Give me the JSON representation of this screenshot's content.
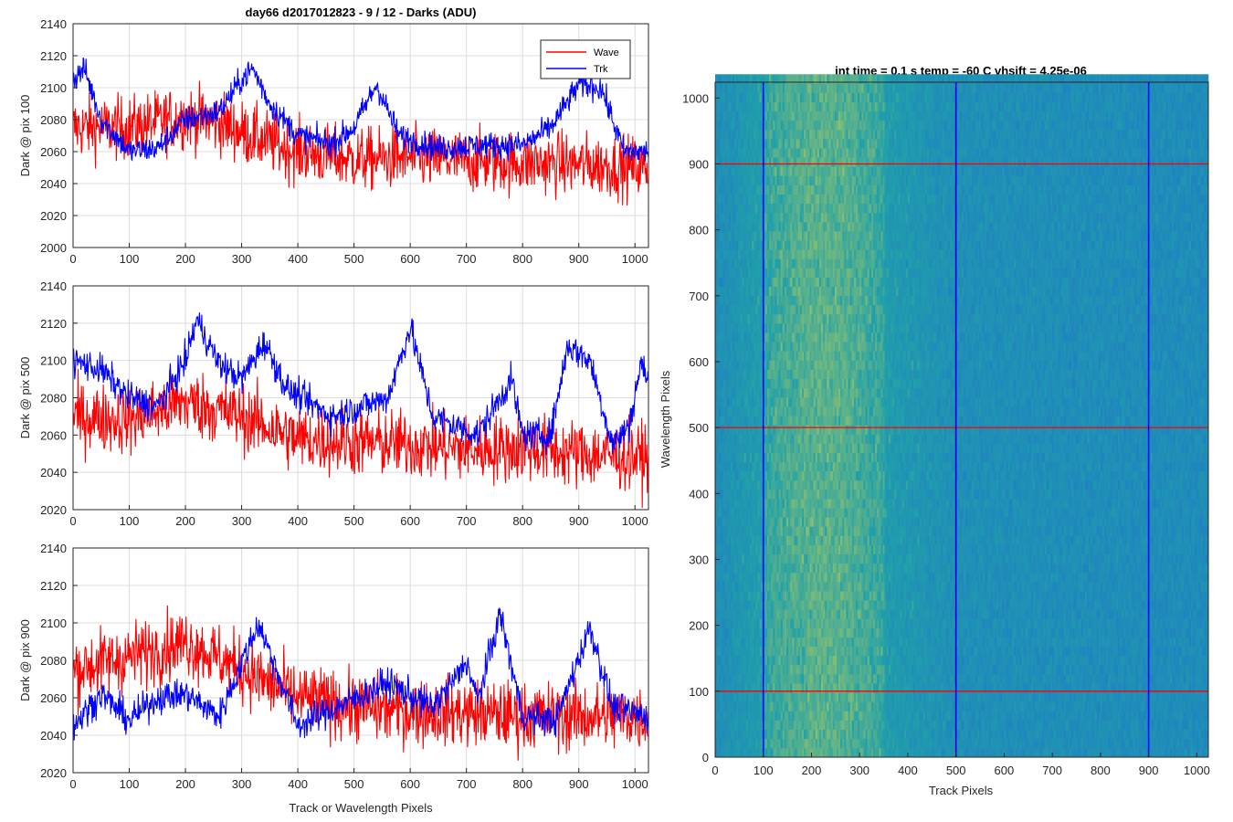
{
  "figure_title": "day66 d2017012823 - 9 / 12 - Darks (ADU)",
  "colors": {
    "wave": "#ff0000",
    "trk": "#0000ff",
    "grid": "#dcdcdc",
    "axes": "#262626",
    "heatmap_low": "#1f78c8",
    "heatmap_mid": "#20a0aa",
    "heatmap_high": "#c8d250"
  },
  "chart_data": [
    {
      "type": "line",
      "ylabel": "Dark @ pix 100",
      "xlabel": "",
      "xlim": [
        0,
        1024
      ],
      "ylim": [
        2000,
        2140
      ],
      "xticks": [
        0,
        100,
        200,
        300,
        400,
        500,
        600,
        700,
        800,
        900,
        1000
      ],
      "yticks": [
        2000,
        2020,
        2040,
        2060,
        2080,
        2100,
        2120,
        2140
      ],
      "grid": true,
      "legend": {
        "position": "top-right",
        "entries": [
          "Wave",
          "Trk"
        ]
      },
      "series": [
        {
          "name": "Wave",
          "color": "#ff0000",
          "noise": 14,
          "keypoints": [
            [
              0,
              2075
            ],
            [
              100,
              2075
            ],
            [
              200,
              2082
            ],
            [
              260,
              2078
            ],
            [
              330,
              2068
            ],
            [
              400,
              2060
            ],
            [
              500,
              2055
            ],
            [
              600,
              2056
            ],
            [
              700,
              2054
            ],
            [
              800,
              2053
            ],
            [
              900,
              2052
            ],
            [
              1024,
              2050
            ]
          ]
        },
        {
          "name": "Trk",
          "color": "#0000ff",
          "noise": 6,
          "keypoints": [
            [
              0,
              2105
            ],
            [
              20,
              2112
            ],
            [
              50,
              2080
            ],
            [
              100,
              2060
            ],
            [
              150,
              2062
            ],
            [
              200,
              2080
            ],
            [
              260,
              2085
            ],
            [
              300,
              2105
            ],
            [
              320,
              2112
            ],
            [
              350,
              2090
            ],
            [
              400,
              2070
            ],
            [
              460,
              2065
            ],
            [
              500,
              2075
            ],
            [
              540,
              2102
            ],
            [
              580,
              2070
            ],
            [
              650,
              2062
            ],
            [
              720,
              2064
            ],
            [
              800,
              2064
            ],
            [
              850,
              2075
            ],
            [
              900,
              2102
            ],
            [
              940,
              2100
            ],
            [
              980,
              2060
            ],
            [
              1024,
              2060
            ]
          ]
        }
      ]
    },
    {
      "type": "line",
      "ylabel": "Dark @ pix 500",
      "xlabel": "",
      "xlim": [
        0,
        1024
      ],
      "ylim": [
        2020,
        2140
      ],
      "xticks": [
        0,
        100,
        200,
        300,
        400,
        500,
        600,
        700,
        800,
        900,
        1000
      ],
      "yticks": [
        2020,
        2040,
        2060,
        2080,
        2100,
        2120,
        2140
      ],
      "grid": true,
      "series": [
        {
          "name": "Wave",
          "color": "#ff0000",
          "noise": 13,
          "keypoints": [
            [
              0,
              2070
            ],
            [
              100,
              2068
            ],
            [
              200,
              2078
            ],
            [
              300,
              2070
            ],
            [
              400,
              2058
            ],
            [
              500,
              2056
            ],
            [
              600,
              2055
            ],
            [
              700,
              2052
            ],
            [
              800,
              2053
            ],
            [
              900,
              2050
            ],
            [
              1024,
              2048
            ]
          ]
        },
        {
          "name": "Trk",
          "color": "#0000ff",
          "noise": 6,
          "keypoints": [
            [
              0,
              2100
            ],
            [
              50,
              2095
            ],
            [
              100,
              2080
            ],
            [
              150,
              2075
            ],
            [
              200,
              2100
            ],
            [
              220,
              2122
            ],
            [
              260,
              2098
            ],
            [
              300,
              2090
            ],
            [
              340,
              2110
            ],
            [
              380,
              2085
            ],
            [
              460,
              2070
            ],
            [
              560,
              2080
            ],
            [
              600,
              2118
            ],
            [
              640,
              2070
            ],
            [
              720,
              2060
            ],
            [
              780,
              2090
            ],
            [
              800,
              2060
            ],
            [
              850,
              2060
            ],
            [
              880,
              2108
            ],
            [
              920,
              2100
            ],
            [
              960,
              2055
            ],
            [
              990,
              2065
            ],
            [
              1010,
              2098
            ],
            [
              1024,
              2090
            ]
          ]
        }
      ]
    },
    {
      "type": "line",
      "ylabel": "Dark @ pix 900",
      "xlabel": "Track or Wavelength Pixels",
      "xlim": [
        0,
        1024
      ],
      "ylim": [
        2020,
        2140
      ],
      "xticks": [
        0,
        100,
        200,
        300,
        400,
        500,
        600,
        700,
        800,
        900,
        1000
      ],
      "yticks": [
        2020,
        2040,
        2060,
        2080,
        2100,
        2120,
        2140
      ],
      "grid": true,
      "series": [
        {
          "name": "Wave",
          "color": "#ff0000",
          "noise": 13,
          "keypoints": [
            [
              0,
              2075
            ],
            [
              100,
              2082
            ],
            [
              200,
              2090
            ],
            [
              300,
              2075
            ],
            [
              400,
              2060
            ],
            [
              500,
              2055
            ],
            [
              600,
              2053
            ],
            [
              700,
              2052
            ],
            [
              800,
              2050
            ],
            [
              900,
              2050
            ],
            [
              1024,
              2050
            ]
          ]
        },
        {
          "name": "Trk",
          "color": "#0000ff",
          "noise": 6,
          "keypoints": [
            [
              0,
              2045
            ],
            [
              50,
              2062
            ],
            [
              100,
              2048
            ],
            [
              150,
              2060
            ],
            [
              200,
              2062
            ],
            [
              260,
              2050
            ],
            [
              330,
              2100
            ],
            [
              400,
              2045
            ],
            [
              470,
              2055
            ],
            [
              560,
              2068
            ],
            [
              640,
              2055
            ],
            [
              680,
              2070
            ],
            [
              700,
              2080
            ],
            [
              720,
              2058
            ],
            [
              760,
              2105
            ],
            [
              800,
              2050
            ],
            [
              860,
              2048
            ],
            [
              920,
              2098
            ],
            [
              960,
              2055
            ],
            [
              1024,
              2050
            ]
          ]
        }
      ]
    },
    {
      "type": "heatmap",
      "title": "int time = 0.1 s   temp = -60 C   vhsift = 4.25e-06",
      "xlabel": "Track Pixels",
      "ylabel": "Wavelength Pixels",
      "xlim": [
        0,
        1024
      ],
      "ylim": [
        0,
        1024
      ],
      "xticks": [
        0,
        100,
        200,
        300,
        400,
        500,
        600,
        700,
        800,
        900,
        1000
      ],
      "yticks": [
        0,
        100,
        200,
        300,
        400,
        500,
        600,
        700,
        800,
        900,
        1000
      ],
      "bright_band": [
        100,
        350
      ],
      "hlines": {
        "color": "#ff0000",
        "values": [
          100,
          500,
          900
        ]
      },
      "vlines": {
        "color": "#0000ff",
        "values": [
          100,
          500,
          900
        ]
      }
    }
  ]
}
